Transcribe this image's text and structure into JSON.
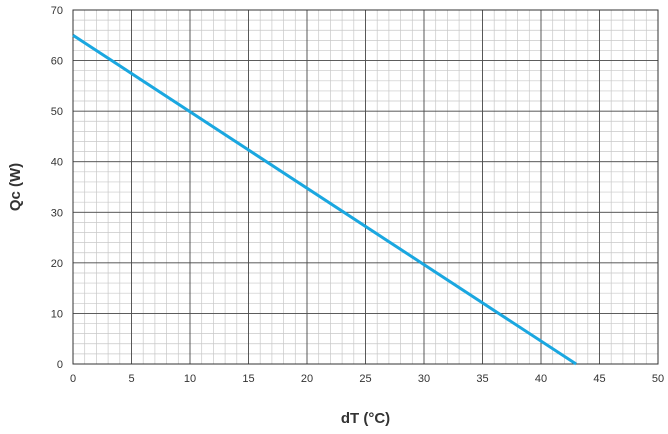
{
  "chart_data": {
    "type": "line",
    "xlabel": "dT (°C)",
    "ylabel": "Qc (W)",
    "xlim": [
      0,
      50
    ],
    "ylim": [
      0,
      70
    ],
    "x_ticks": [
      0,
      5,
      10,
      15,
      20,
      25,
      30,
      35,
      40,
      45,
      50
    ],
    "y_ticks": [
      0,
      10,
      20,
      30,
      40,
      50,
      60,
      70
    ],
    "minor_divisions": 5,
    "grid": true,
    "series": [
      {
        "color": "#1aa7e0",
        "x": [
          0,
          43
        ],
        "y": [
          65,
          0
        ]
      }
    ]
  }
}
